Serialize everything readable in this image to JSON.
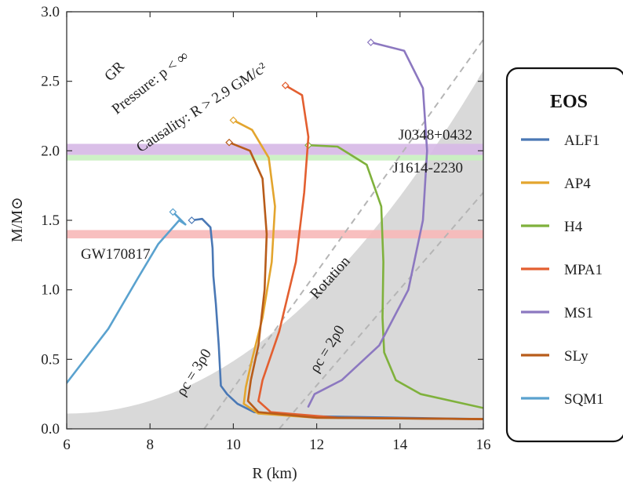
{
  "chart_data": {
    "type": "line",
    "xlabel": "R (km)",
    "ylabel": "M/M⊙",
    "xlim": [
      6,
      16
    ],
    "ylim": [
      0,
      3
    ],
    "xticks": [
      "6",
      "8",
      "10",
      "12",
      "14",
      "16"
    ],
    "yticks": [
      "0.0",
      "0.5",
      "1.0",
      "1.5",
      "2.0",
      "2.5",
      "3.0"
    ],
    "legend": {
      "title": "EOS",
      "position": "right"
    },
    "regions": [
      {
        "label": "GR",
        "slope": 1.0,
        "color": "#c9c9c9"
      },
      {
        "label": "Pressure: p < ∞",
        "slope": 0.7513,
        "color": "#dcdcdc"
      },
      {
        "label": "Causality: R > 2.9 GM/c²",
        "slope": 0.6286,
        "color": "#efefef"
      },
      {
        "label": "Rotation",
        "color": "#d9d9d9"
      }
    ],
    "bands": [
      {
        "label": "J0348+0432",
        "y": [
          1.97,
          2.05
        ],
        "color": "#d6b8e6"
      },
      {
        "label": "J1614-2230",
        "y": [
          1.93,
          1.97
        ],
        "color": "#c8efc0"
      },
      {
        "label": "GW170817",
        "y": [
          1.37,
          1.43
        ],
        "color": "#f7b8b8"
      }
    ],
    "density_lines": [
      {
        "label": "ρc = 3ρ0",
        "points": [
          [
            9.3,
            0.0
          ],
          [
            16.0,
            2.8
          ]
        ]
      },
      {
        "label": "ρc = 2ρ0",
        "points": [
          [
            11.1,
            0.0
          ],
          [
            16.0,
            1.7
          ]
        ]
      }
    ],
    "series": [
      {
        "name": "ALF1",
        "color": "#4a78b5",
        "points": [
          [
            16.0,
            0.07
          ],
          [
            12.0,
            0.09
          ],
          [
            10.5,
            0.12
          ],
          [
            10.1,
            0.18
          ],
          [
            9.85,
            0.25
          ],
          [
            9.7,
            0.31
          ],
          [
            9.65,
            0.6
          ],
          [
            9.58,
            0.9
          ],
          [
            9.52,
            1.1
          ],
          [
            9.5,
            1.3
          ],
          [
            9.45,
            1.45
          ],
          [
            9.25,
            1.51
          ],
          [
            9.0,
            1.5
          ]
        ]
      },
      {
        "name": "AP4",
        "color": "#e3a52e",
        "points": [
          [
            16.0,
            0.07
          ],
          [
            12.0,
            0.08
          ],
          [
            10.6,
            0.11
          ],
          [
            10.25,
            0.18
          ],
          [
            10.3,
            0.3
          ],
          [
            10.45,
            0.5
          ],
          [
            10.7,
            0.8
          ],
          [
            10.92,
            1.2
          ],
          [
            11.0,
            1.6
          ],
          [
            10.85,
            1.95
          ],
          [
            10.45,
            2.15
          ],
          [
            10.0,
            2.22
          ]
        ]
      },
      {
        "name": "H4",
        "color": "#7fb13c",
        "points": [
          [
            16.0,
            0.15
          ],
          [
            14.5,
            0.25
          ],
          [
            13.9,
            0.35
          ],
          [
            13.62,
            0.55
          ],
          [
            13.58,
            0.8
          ],
          [
            13.6,
            1.2
          ],
          [
            13.55,
            1.6
          ],
          [
            13.2,
            1.9
          ],
          [
            12.5,
            2.03
          ],
          [
            11.8,
            2.04
          ]
        ]
      },
      {
        "name": "MPA1",
        "color": "#e35f30",
        "points": [
          [
            16.0,
            0.07
          ],
          [
            12.5,
            0.08
          ],
          [
            10.9,
            0.12
          ],
          [
            10.6,
            0.2
          ],
          [
            10.7,
            0.35
          ],
          [
            11.1,
            0.7
          ],
          [
            11.5,
            1.2
          ],
          [
            11.7,
            1.7
          ],
          [
            11.8,
            2.1
          ],
          [
            11.65,
            2.4
          ],
          [
            11.25,
            2.47
          ]
        ]
      },
      {
        "name": "MS1",
        "color": "#8c78c0",
        "points": [
          [
            11.8,
            0.16
          ],
          [
            11.95,
            0.25
          ],
          [
            12.6,
            0.35
          ],
          [
            13.5,
            0.6
          ],
          [
            14.2,
            1.0
          ],
          [
            14.55,
            1.5
          ],
          [
            14.65,
            2.0
          ],
          [
            14.55,
            2.45
          ],
          [
            14.1,
            2.72
          ],
          [
            13.3,
            2.78
          ]
        ]
      },
      {
        "name": "SLy",
        "color": "#b85c1a",
        "points": [
          [
            16.0,
            0.07
          ],
          [
            12.0,
            0.08
          ],
          [
            10.6,
            0.12
          ],
          [
            10.35,
            0.2
          ],
          [
            10.42,
            0.35
          ],
          [
            10.6,
            0.6
          ],
          [
            10.75,
            1.0
          ],
          [
            10.8,
            1.4
          ],
          [
            10.7,
            1.8
          ],
          [
            10.4,
            2.0
          ],
          [
            9.9,
            2.06
          ]
        ]
      },
      {
        "name": "SQM1",
        "color": "#5aa2cf",
        "points": [
          [
            6.0,
            0.33
          ],
          [
            7.0,
            0.72
          ],
          [
            7.7,
            1.08
          ],
          [
            8.2,
            1.33
          ],
          [
            8.7,
            1.5
          ],
          [
            8.85,
            1.47
          ],
          [
            8.55,
            1.56
          ]
        ]
      }
    ]
  }
}
